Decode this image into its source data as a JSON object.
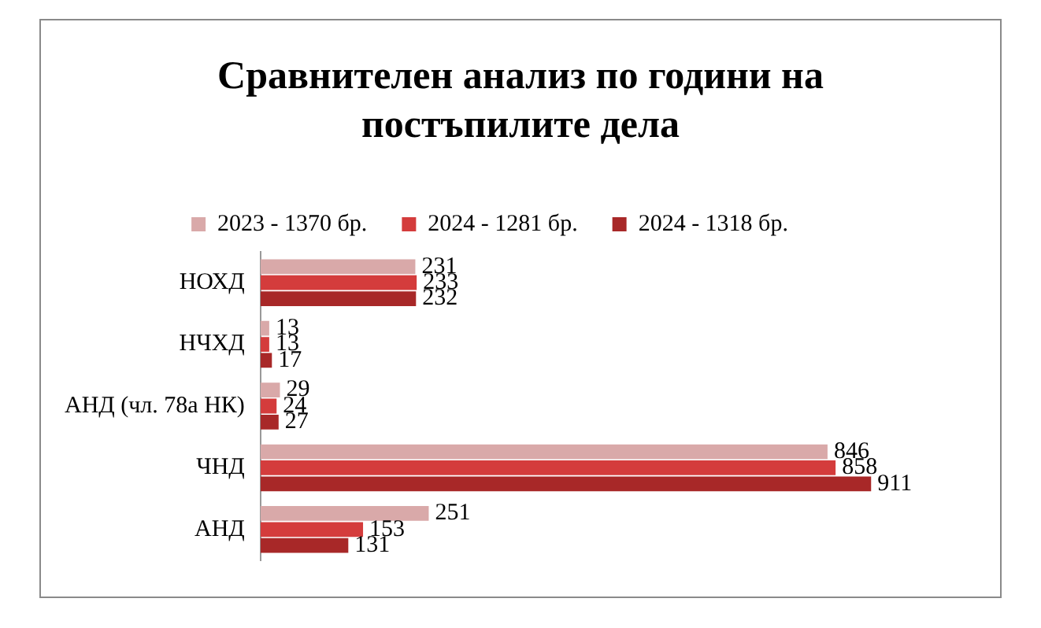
{
  "chart_data": {
    "type": "bar",
    "orientation": "horizontal",
    "title": "Сравнителен анализ по години на постъпилите дела",
    "categories": [
      "НОХД",
      "НЧХД",
      "АНД (чл. 78а НК)",
      "ЧНД",
      "АНД"
    ],
    "series": [
      {
        "name": "2023 - 1370 бр.",
        "color": "#d9a9a9",
        "values": [
          231,
          13,
          29,
          846,
          251
        ]
      },
      {
        "name": "2024 - 1281 бр.",
        "color": "#d43c3c",
        "values": [
          233,
          13,
          24,
          858,
          153
        ]
      },
      {
        "name": "2024 - 1318 бр.",
        "color": "#a82828",
        "values": [
          232,
          17,
          27,
          911,
          131
        ]
      }
    ],
    "data_labels": true,
    "legend": "top",
    "grid": false
  }
}
